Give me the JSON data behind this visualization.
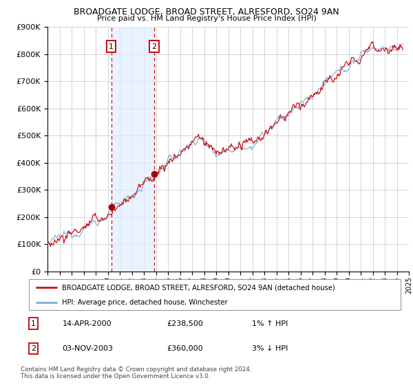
{
  "title": "BROADGATE LODGE, BROAD STREET, ALRESFORD, SO24 9AN",
  "subtitle": "Price paid vs. HM Land Registry's House Price Index (HPI)",
  "legend_line1": "BROADGATE LODGE, BROAD STREET, ALRESFORD, SO24 9AN (detached house)",
  "legend_line2": "HPI: Average price, detached house, Winchester",
  "footnote1": "Contains HM Land Registry data © Crown copyright and database right 2024.",
  "footnote2": "This data is licensed under the Open Government Licence v3.0.",
  "transaction1_date": "14-APR-2000",
  "transaction1_price": "£238,500",
  "transaction1_hpi": "1% ↑ HPI",
  "transaction2_date": "03-NOV-2003",
  "transaction2_price": "£360,000",
  "transaction2_hpi": "3% ↓ HPI",
  "ylim_min": 0,
  "ylim_max": 900000,
  "xlim_min": 1995,
  "xlim_max": 2025,
  "background_color": "#ffffff",
  "plot_bg_color": "#ffffff",
  "grid_color": "#cccccc",
  "hpi_line_color": "#7aaddc",
  "price_line_color": "#cc1111",
  "marker_color": "#aa0000",
  "shade_color": "#ddeeff",
  "vline_color": "#cc1111",
  "t1_year": 2000.29,
  "t2_year": 2003.84,
  "t1_price": 238500,
  "t2_price": 360000
}
